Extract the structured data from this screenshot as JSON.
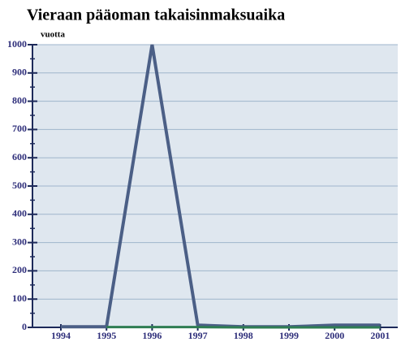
{
  "chart_data": {
    "type": "line",
    "title": "Vieraan pääoman takaisinmaksuaika",
    "ylabel": "vuotta",
    "categories": [
      "1994",
      "1995",
      "1996",
      "1997",
      "1998",
      "1999",
      "2000",
      "2001"
    ],
    "series": [
      {
        "color": "#4b5f86",
        "values": [
          2,
          2,
          1000,
          8,
          2,
          2,
          8,
          8
        ]
      },
      {
        "color": "#2f7d52",
        "values": [
          null,
          1,
          1,
          1,
          0,
          0,
          0,
          0
        ]
      }
    ],
    "ylim": [
      0,
      1000
    ],
    "yticks": [
      0,
      100,
      200,
      300,
      400,
      500,
      600,
      700,
      800,
      900,
      1000
    ],
    "grid": true
  }
}
